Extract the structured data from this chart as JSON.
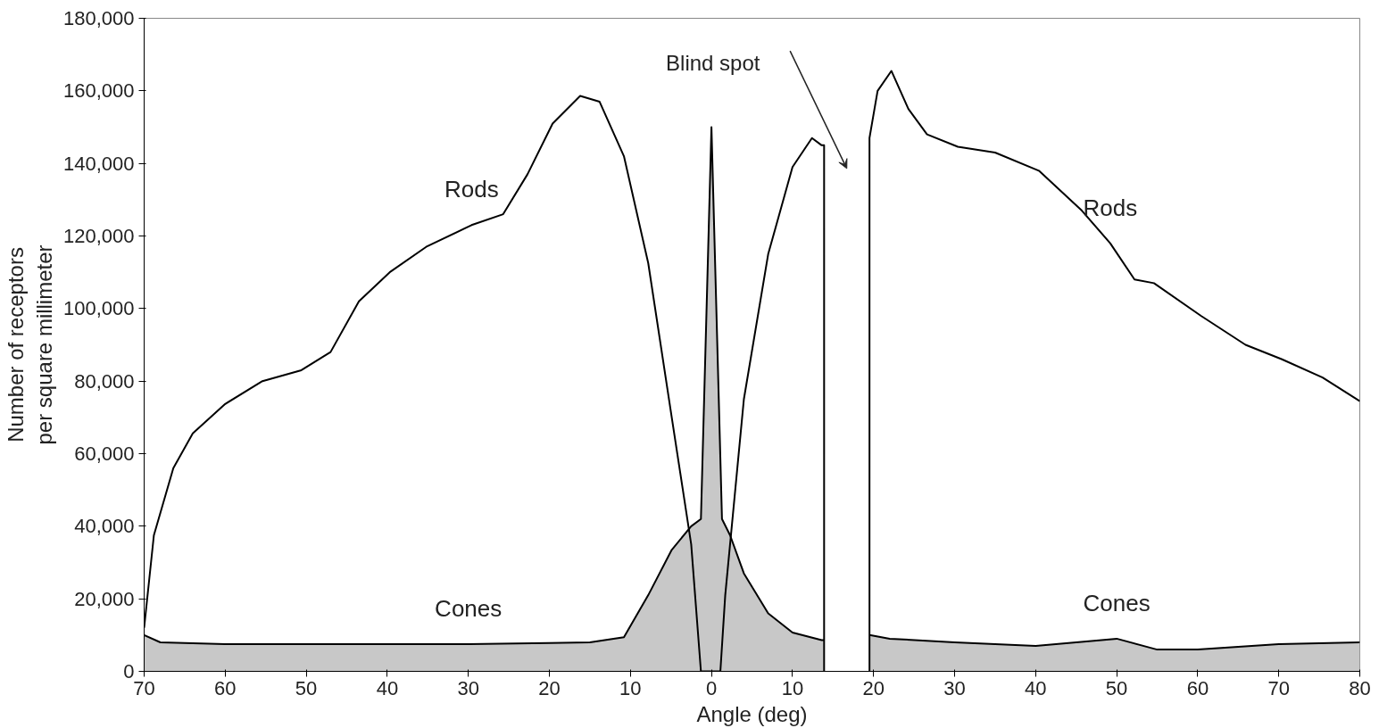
{
  "chart_data": {
    "type": "line",
    "xlabel": "Angle (deg)",
    "ylabel": "Number of receptors\nper square millimeter",
    "xlim": [
      -70,
      80
    ],
    "ylim": [
      0,
      180000
    ],
    "xticks": [
      {
        "value": -70,
        "label": "70"
      },
      {
        "value": -60,
        "label": "60"
      },
      {
        "value": -50,
        "label": "50"
      },
      {
        "value": -40,
        "label": "40"
      },
      {
        "value": -30,
        "label": "30"
      },
      {
        "value": -20,
        "label": "20"
      },
      {
        "value": -10,
        "label": "10"
      },
      0,
      10,
      20,
      30,
      40,
      50,
      60,
      70,
      80
    ],
    "yticks": [
      0,
      {
        "value": 20000,
        "label": "20,000"
      },
      {
        "value": 40000,
        "label": "40,000"
      },
      {
        "value": 60000,
        "label": "60,000"
      },
      {
        "value": 80000,
        "label": "80,000"
      },
      {
        "value": 100000,
        "label": "100,000"
      },
      {
        "value": 120000,
        "label": "120,000"
      },
      {
        "value": 140000,
        "label": "140,000"
      },
      {
        "value": 160000,
        "label": "160,000"
      },
      {
        "value": 180000,
        "label": "180,000"
      }
    ],
    "grid": false,
    "line_style": "solid",
    "marker": "none",
    "series": [
      {
        "color": "#000000",
        "x": [
          -70,
          -68.8,
          -66.4,
          -64,
          -60,
          -55.4,
          -50.6,
          -47,
          -43.5,
          -39.7,
          -35.2,
          -29.6,
          -25.7,
          -22.7,
          -19.6,
          -16.2,
          -13.8,
          -10.8,
          -7.8,
          -4.9,
          -2.5,
          -1.3,
          1.1,
          1.7,
          4,
          7,
          10,
          12.4,
          13.6,
          13.9,
          13.9,
          16,
          19.5,
          19.5,
          20.5,
          22.2,
          24.3,
          26.6,
          30.4,
          35,
          40.4,
          45.7,
          49.2,
          52.2,
          54.6,
          60.4,
          65.9,
          70.4,
          75.4,
          80
        ],
        "values": [
          12000,
          37500,
          56000,
          65600,
          73700,
          80000,
          83000,
          88000,
          102000,
          110000,
          117000,
          123000,
          126000,
          137000,
          151000,
          158600,
          157000,
          142000,
          112500,
          70000,
          35000,
          0,
          0,
          21000,
          75000,
          115000,
          139000,
          147000,
          145000,
          145000,
          0,
          null,
          0,
          147000,
          160000,
          165500,
          155000,
          148000,
          144600,
          143000,
          138000,
          127000,
          118000,
          108000,
          107000,
          98000,
          90000,
          86000,
          81000,
          74500
        ]
      },
      {
        "type": "area",
        "color": "#c8c8c8",
        "x": [
          -70,
          -68,
          -60,
          -50,
          -40,
          -30,
          -20,
          -15,
          -10.8,
          -7.8,
          -4.9,
          -2.5,
          -1.3,
          0,
          1.3,
          2.3,
          4,
          7,
          10,
          13.6,
          13.9,
          16,
          19.5,
          22,
          30,
          40,
          45,
          50,
          55,
          60,
          70,
          80
        ],
        "values": [
          10000,
          8000,
          7500,
          7500,
          7500,
          7500,
          7800,
          8000,
          9400,
          21000,
          33500,
          40000,
          42000,
          150000,
          42000,
          37500,
          27000,
          16000,
          10700,
          8600,
          8600,
          null,
          10000,
          9000,
          8000,
          7000,
          8000,
          9000,
          6000,
          6000,
          7500,
          8000
        ]
      }
    ],
    "annotations": [
      {
        "text": "Rods",
        "x": -29.6,
        "y": 123000
      },
      {
        "text": "Rods",
        "x": 49.2,
        "y": 118000
      },
      {
        "text": "Cones",
        "x": -30,
        "y": 7500
      },
      {
        "text": "Cones",
        "x": 50,
        "y": 9000
      },
      "Blind spot"
    ]
  }
}
